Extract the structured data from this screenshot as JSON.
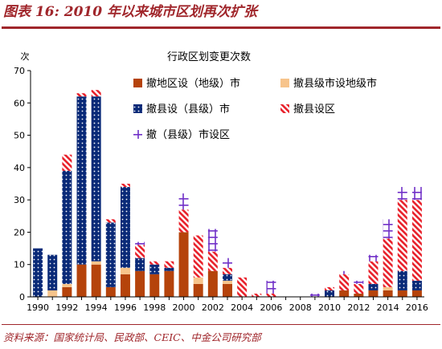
{
  "figure": {
    "title": "图表 16: 2010 年以来城市区划再次扩张",
    "source": "资料来源：国家统计局、民政部、CEIC、中金公司研究部"
  },
  "chart_data": {
    "type": "bar",
    "stacked": true,
    "title": "行政区划变更次数",
    "ylabel": "次",
    "ylim": [
      0,
      70
    ],
    "yticks": [
      0,
      10,
      20,
      30,
      40,
      50,
      60,
      70
    ],
    "xtick_labels": [
      "1990",
      "1992",
      "1994",
      "1996",
      "1998",
      "2000",
      "2002",
      "2004",
      "2006",
      "2008",
      "2010",
      "2012",
      "2014",
      "2016"
    ],
    "grid": false,
    "legend_position": "top-right",
    "categories": [
      "1990",
      "1991",
      "1992",
      "1993",
      "1994",
      "1995",
      "1996",
      "1997",
      "1998",
      "1999",
      "2000",
      "2001",
      "2002",
      "2003",
      "2004",
      "2005",
      "2006",
      "2007",
      "2008",
      "2009",
      "2010",
      "2011",
      "2012",
      "2013",
      "2014",
      "2015",
      "2016"
    ],
    "series": [
      {
        "name": "撤地区设（地级）市",
        "color": "#b5430b",
        "pattern": "solid",
        "values": [
          0,
          0,
          3,
          10,
          10,
          3,
          7,
          8,
          7,
          8,
          20,
          4,
          8,
          4,
          0,
          0,
          0,
          0,
          0,
          0,
          0,
          2,
          1,
          2,
          2,
          2,
          2
        ]
      },
      {
        "name": "撤县级市设地级市",
        "color": "#f7c48b",
        "pattern": "solid",
        "values": [
          0,
          2,
          1,
          0,
          1,
          0,
          2,
          0,
          0,
          0,
          0,
          2,
          0,
          1,
          0,
          0,
          0,
          0,
          0,
          0,
          0,
          0,
          0,
          0,
          1,
          0,
          0
        ]
      },
      {
        "name": "撤县设（县级）市",
        "color": "#0a2a78",
        "pattern": "dots",
        "values": [
          15,
          11,
          35,
          52,
          51,
          20,
          25,
          4,
          3,
          1,
          0,
          0,
          0,
          2,
          0,
          0,
          0,
          0,
          0,
          0,
          2,
          0,
          0,
          2,
          0,
          6,
          3
        ]
      },
      {
        "name": "撤县设区",
        "color": "#e8202a",
        "pattern": "stripes",
        "values": [
          0,
          0,
          5,
          1,
          2,
          1,
          1,
          4,
          1,
          2,
          7,
          13,
          6,
          2,
          6,
          1,
          1,
          0,
          0,
          0,
          1,
          5,
          3,
          7,
          15,
          22,
          25
        ]
      },
      {
        "name": "撤（县级）市设区",
        "color": "#7030c8",
        "pattern": "plus",
        "values": [
          0,
          0,
          0,
          0,
          0,
          0,
          0,
          1,
          0,
          0,
          5,
          0,
          7,
          3,
          0,
          0,
          4,
          0,
          0,
          1,
          0,
          1,
          1,
          2,
          6,
          4,
          4
        ]
      }
    ]
  }
}
